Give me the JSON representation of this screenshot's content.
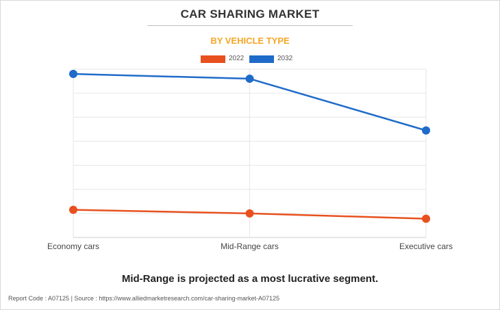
{
  "header": {
    "title": "CAR SHARING MARKET",
    "subtitle": "BY VEHICLE TYPE"
  },
  "caption": "Mid-Range is projected as a most lucrative segment.",
  "footer": {
    "text": "Report Code : A07125  |  Source : https://www.alliedmarketresearch.com/car-sharing-market-A07125"
  },
  "colors": {
    "series_2022": "#e8501e",
    "series_2032": "#1f6bc9",
    "subtitle": "#f5a623"
  },
  "chart_data": {
    "type": "line",
    "categories": [
      "Economy cars",
      "Mid-Range cars",
      "Executive cars"
    ],
    "series": [
      {
        "name": "2022",
        "values": [
          11.5,
          10.0,
          7.8
        ],
        "color": "#e8501e"
      },
      {
        "name": "2032",
        "values": [
          68.0,
          66.0,
          44.5
        ],
        "color": "#1f6bc9"
      }
    ],
    "ylim": [
      0,
      70
    ],
    "grid": true,
    "legend": "top-center",
    "title": "CAR SHARING MARKET",
    "xlabel": "",
    "ylabel": ""
  }
}
